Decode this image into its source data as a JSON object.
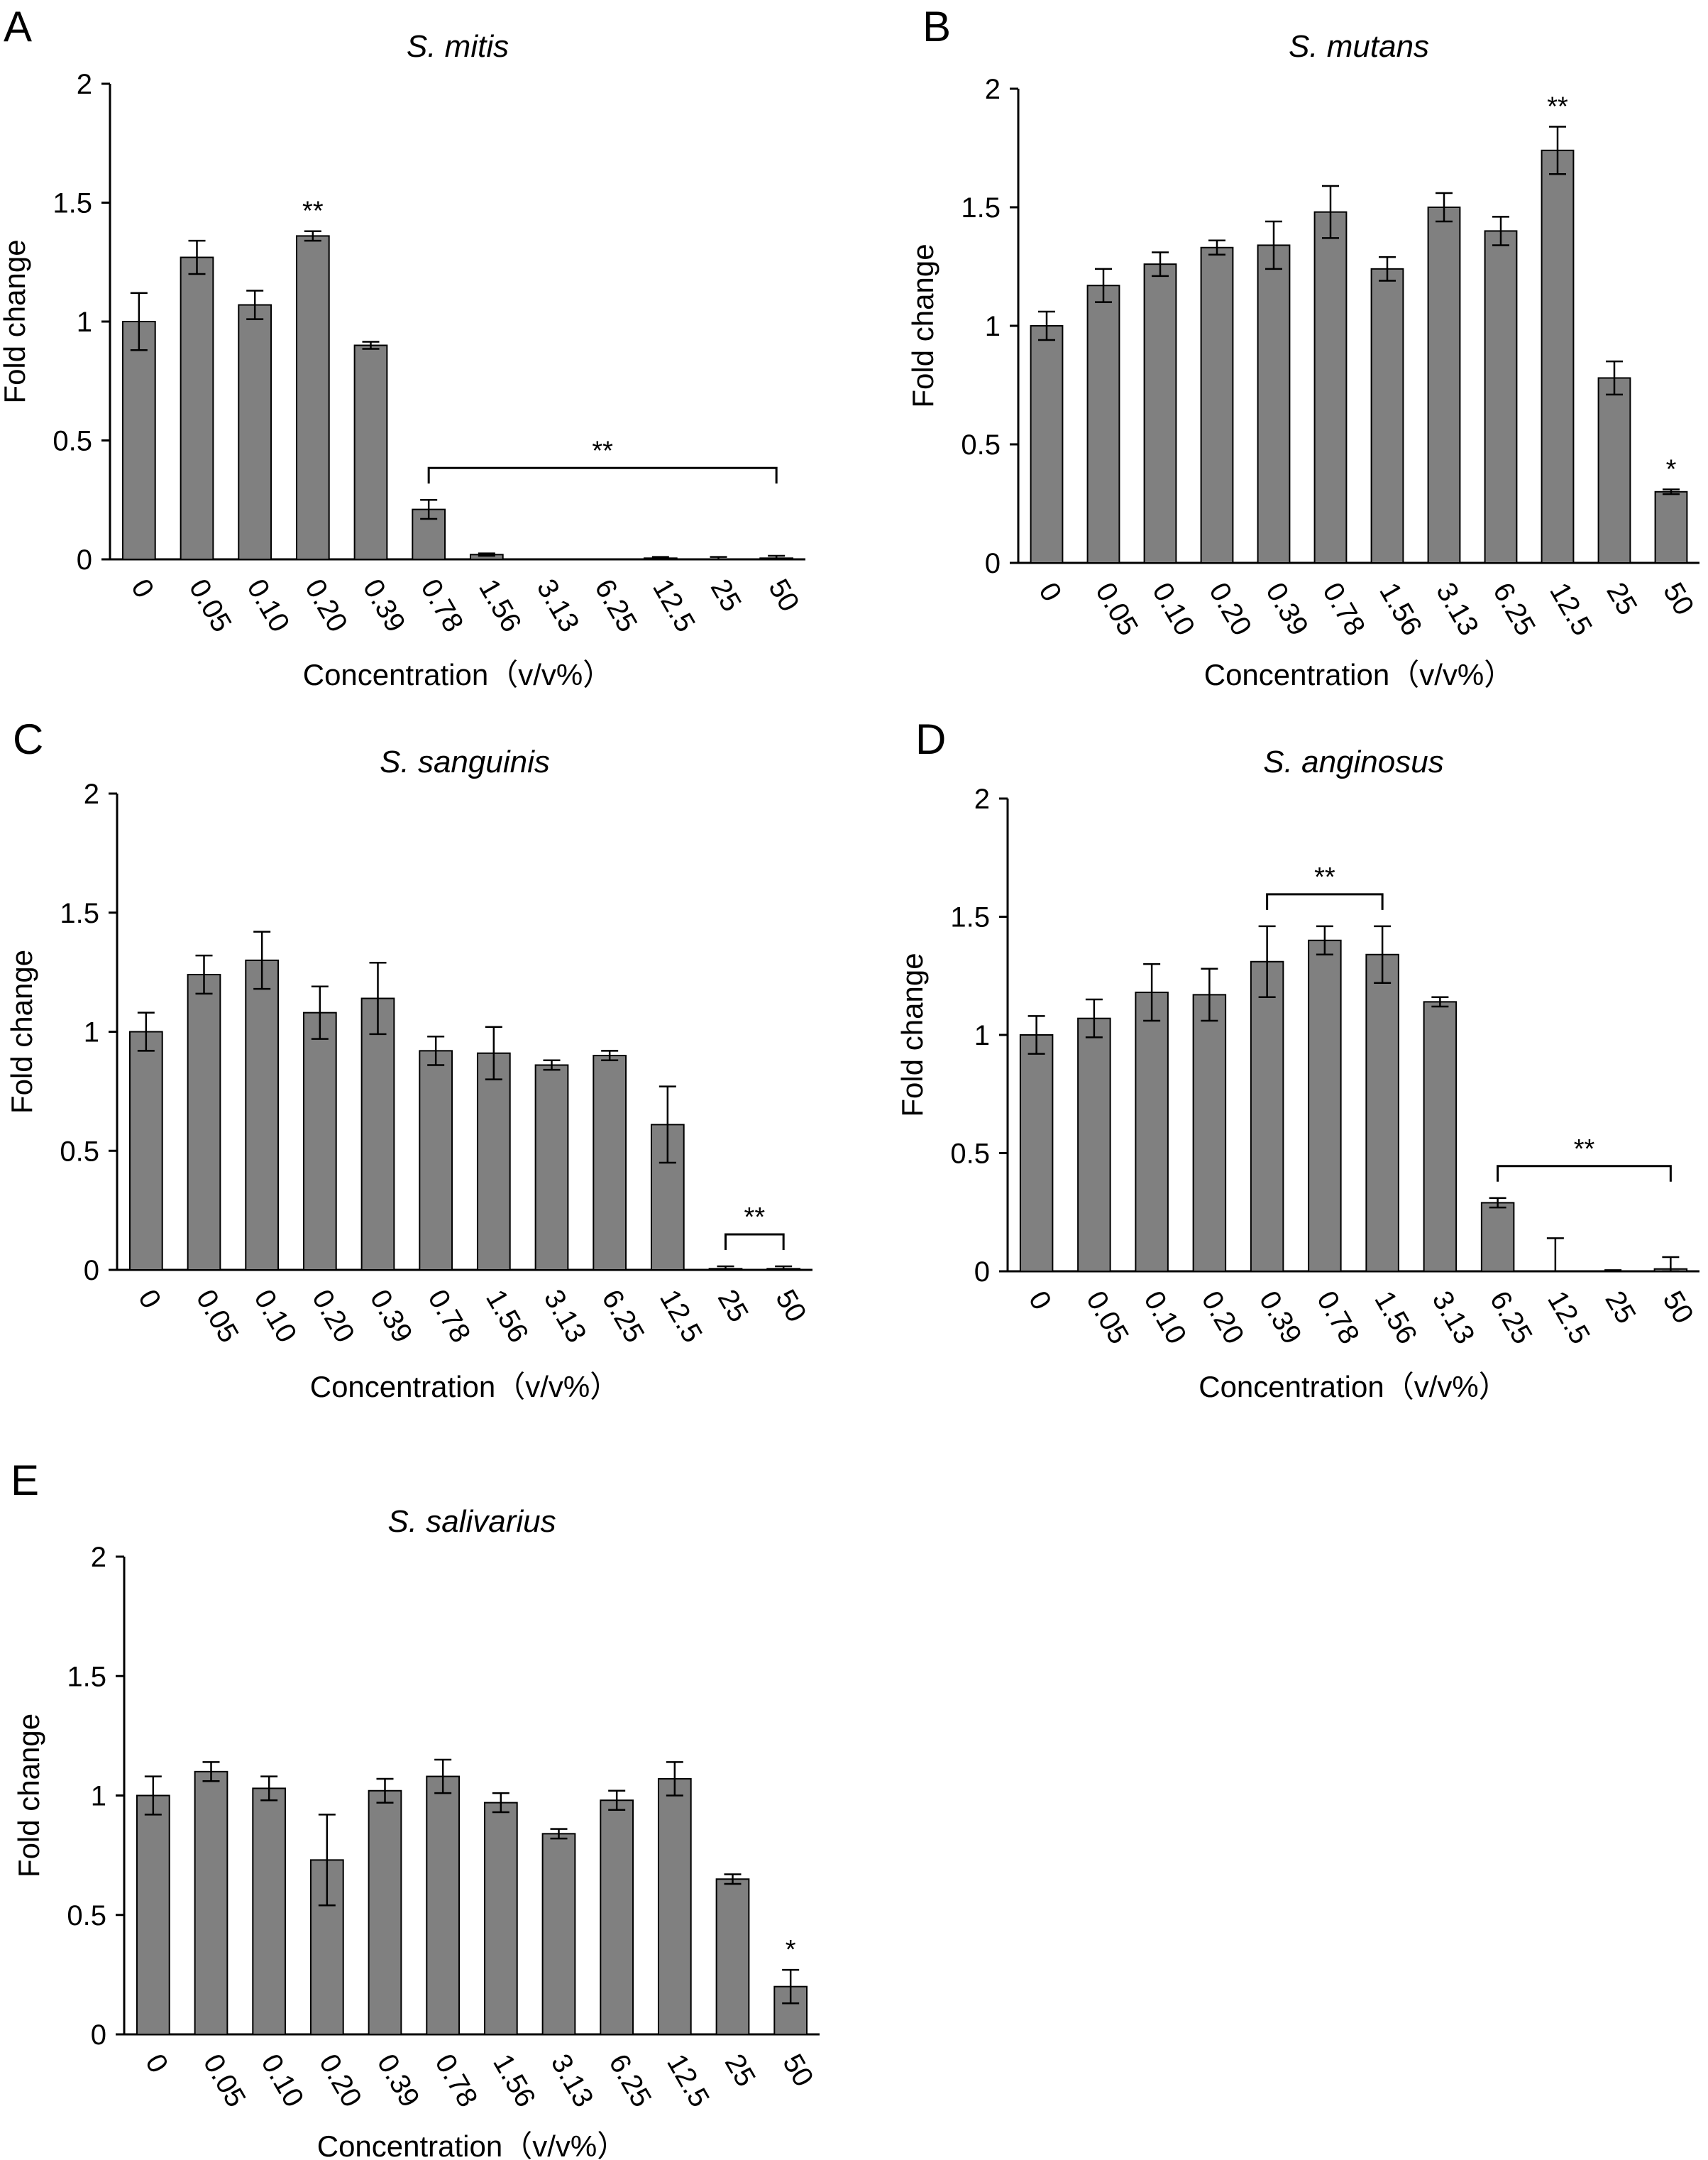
{
  "figure": {
    "categories": [
      "0",
      "0.05",
      "0.10",
      "0.20",
      "0.39",
      "0.78",
      "1.56",
      "3.13",
      "6.25",
      "12.5",
      "25",
      "50"
    ],
    "y_ticks": [
      "0",
      "0.5",
      "1",
      "1.5",
      "2"
    ],
    "bar_color": "#808080"
  },
  "chart_data": [
    {
      "panel": "A",
      "type": "bar",
      "title": "S. mitis",
      "xlabel": "Concentration（v/v%）",
      "ylabel": "Fold change",
      "ylim": [
        0,
        2
      ],
      "categories": [
        "0",
        "0.05",
        "0.10",
        "0.20",
        "0.39",
        "0.78",
        "1.56",
        "3.13",
        "6.25",
        "12.5",
        "25",
        "50"
      ],
      "values": [
        1.0,
        1.27,
        1.07,
        1.36,
        0.9,
        0.21,
        0.02,
        0.0,
        0.0,
        0.005,
        0.0,
        0.005
      ],
      "errors": [
        0.12,
        0.07,
        0.06,
        0.02,
        0.015,
        0.04,
        0.005,
        0,
        0,
        0.005,
        0.01,
        0.01
      ],
      "annotations": [
        {
          "text": "**",
          "type": "single",
          "index": 3
        },
        {
          "text": "**",
          "type": "bracket",
          "from": 5,
          "to": 11
        }
      ]
    },
    {
      "panel": "B",
      "type": "bar",
      "title": "S. mutans",
      "xlabel": "Concentration（v/v%）",
      "ylabel": "Fold change",
      "ylim": [
        0,
        2
      ],
      "categories": [
        "0",
        "0.05",
        "0.10",
        "0.20",
        "0.39",
        "0.78",
        "1.56",
        "3.13",
        "6.25",
        "12.5",
        "25",
        "50"
      ],
      "values": [
        1.0,
        1.17,
        1.26,
        1.33,
        1.34,
        1.48,
        1.24,
        1.5,
        1.4,
        1.74,
        0.78,
        0.3
      ],
      "errors": [
        0.06,
        0.07,
        0.05,
        0.03,
        0.1,
        0.11,
        0.05,
        0.06,
        0.06,
        0.1,
        0.07,
        0.01
      ],
      "annotations": [
        {
          "text": "**",
          "type": "single",
          "index": 9
        },
        {
          "text": "*",
          "type": "single",
          "index": 11
        }
      ]
    },
    {
      "panel": "C",
      "type": "bar",
      "title": "S. sanguinis",
      "xlabel": "Concentration（v/v%）",
      "ylabel": "Fold change",
      "ylim": [
        0,
        2
      ],
      "categories": [
        "0",
        "0.05",
        "0.10",
        "0.20",
        "0.39",
        "0.78",
        "1.56",
        "3.13",
        "6.25",
        "12.5",
        "25",
        "50"
      ],
      "values": [
        1.0,
        1.24,
        1.3,
        1.08,
        1.14,
        0.92,
        0.91,
        0.86,
        0.9,
        0.61,
        0.005,
        0.005
      ],
      "errors": [
        0.08,
        0.08,
        0.12,
        0.11,
        0.15,
        0.06,
        0.11,
        0.02,
        0.02,
        0.16,
        0.01,
        0.01
      ],
      "annotations": [
        {
          "text": "**",
          "type": "bracket",
          "from": 10,
          "to": 11
        }
      ]
    },
    {
      "panel": "D",
      "type": "bar",
      "title": "S. anginosus",
      "xlabel": "Concentration（v/v%）",
      "ylabel": "Fold change",
      "ylim": [
        0,
        2
      ],
      "categories": [
        "0",
        "0.05",
        "0.10",
        "0.20",
        "0.39",
        "0.78",
        "1.56",
        "3.13",
        "6.25",
        "12.5",
        "25",
        "50"
      ],
      "values": [
        1.0,
        1.07,
        1.18,
        1.17,
        1.31,
        1.4,
        1.34,
        1.14,
        0.29,
        0.0,
        0.0,
        0.01
      ],
      "errors": [
        0.08,
        0.08,
        0.12,
        0.11,
        0.15,
        0.06,
        0.12,
        0.02,
        0.02,
        0.14,
        0.005,
        0.05
      ],
      "annotations": [
        {
          "text": "**",
          "type": "bracket",
          "from": 4,
          "to": 6
        },
        {
          "text": "**",
          "type": "bracket",
          "from": 8,
          "to": 11
        }
      ]
    },
    {
      "panel": "E",
      "type": "bar",
      "title": "S. salivarius",
      "xlabel": "Concentration（v/v%）",
      "ylabel": "Fold change",
      "ylim": [
        0,
        2
      ],
      "categories": [
        "0",
        "0.05",
        "0.10",
        "0.20",
        "0.39",
        "0.78",
        "1.56",
        "3.13",
        "6.25",
        "12.5",
        "25",
        "50"
      ],
      "values": [
        1.0,
        1.1,
        1.03,
        0.73,
        1.02,
        1.08,
        0.97,
        0.84,
        0.98,
        1.07,
        0.65,
        0.2
      ],
      "errors": [
        0.08,
        0.04,
        0.05,
        0.19,
        0.05,
        0.07,
        0.04,
        0.02,
        0.04,
        0.07,
        0.02,
        0.07
      ],
      "annotations": [
        {
          "text": "*",
          "type": "single",
          "index": 11
        }
      ]
    }
  ]
}
